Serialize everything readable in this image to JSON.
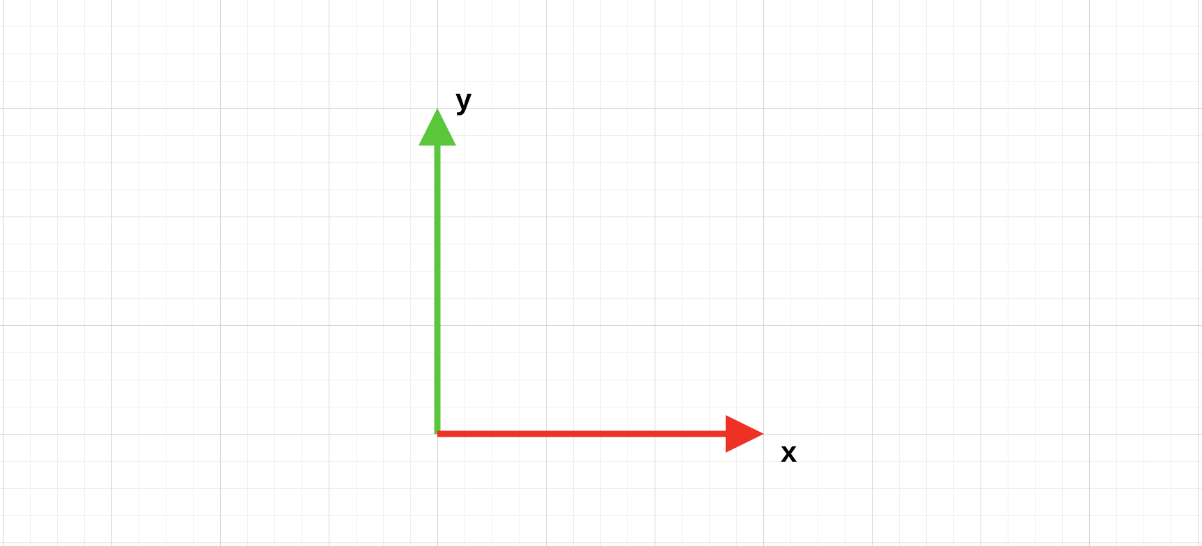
{
  "canvas": {
    "grid": true,
    "background_color": "#ffffff",
    "grid_minor_color": "#efefef",
    "grid_major_color": "#d3d3d3"
  },
  "axes": {
    "x": {
      "label": "x",
      "color": "#ee3124",
      "direction": "right"
    },
    "y": {
      "label": "y",
      "color": "#5ac63a",
      "direction": "up"
    }
  }
}
